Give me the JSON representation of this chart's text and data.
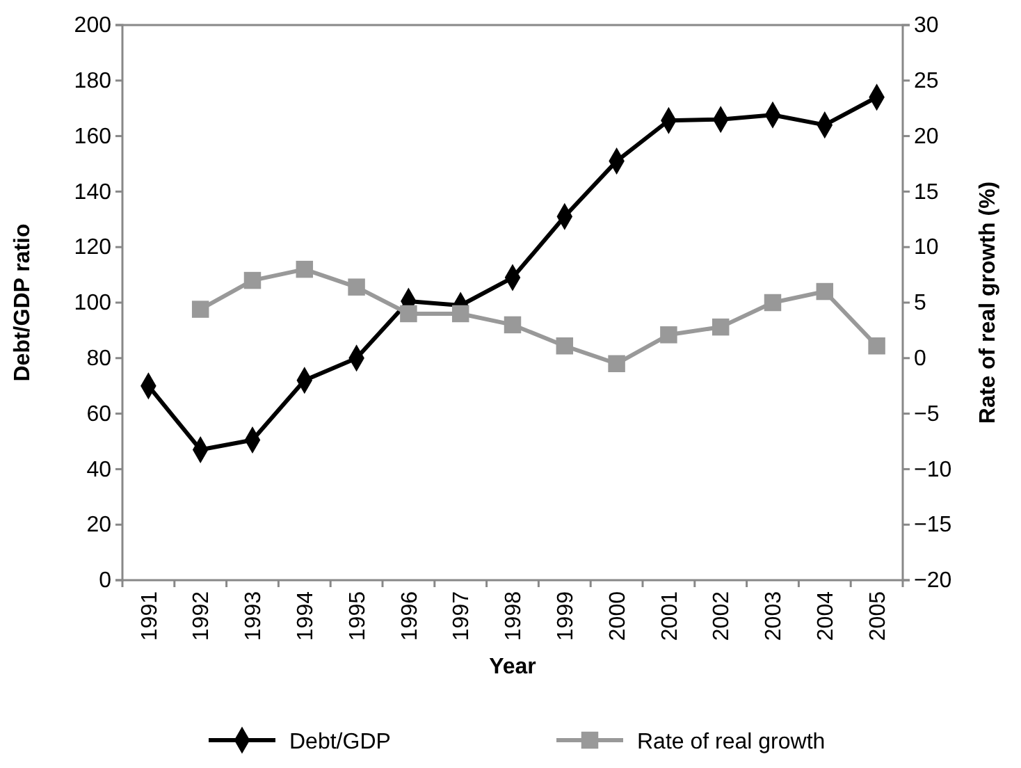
{
  "chart_data": {
    "type": "line",
    "xlabel": "Year",
    "ylabel": "Debt/GDP ratio",
    "y2label": "Rate of real growth (%)",
    "categories": [
      "1991",
      "1992",
      "1993",
      "1994",
      "1995",
      "1996",
      "1997",
      "1998",
      "1999",
      "2000",
      "2001",
      "2002",
      "2003",
      "2004",
      "2005"
    ],
    "series": [
      {
        "name": "Debt/GDP",
        "color": "#000000",
        "marker": "diamond",
        "values": [
          70,
          47,
          50.5,
          72,
          80,
          100.5,
          99,
          109,
          131,
          151,
          165.6,
          166,
          167.6,
          164,
          174
        ]
      },
      {
        "name": "Rate of real growth",
        "color": "#999999",
        "marker": "square",
        "axis": "y2",
        "values": [
          null,
          4.4,
          7,
          8,
          6.4,
          4,
          4,
          3,
          1.1,
          -0.5,
          2.1,
          2.8,
          5,
          6,
          1.1
        ]
      }
    ],
    "ylim": [
      0,
      200
    ],
    "yticks": [
      0,
      20,
      40,
      60,
      80,
      100,
      120,
      140,
      160,
      180,
      200
    ],
    "y2lim": [
      -20,
      30
    ],
    "y2ticks": [
      {
        "value": -20,
        "label": "−20"
      },
      {
        "value": -15,
        "label": "−15"
      },
      {
        "value": -10,
        "label": "−10"
      },
      {
        "value": -5,
        "label": "−5"
      },
      0,
      5,
      10,
      15,
      20,
      25,
      30
    ],
    "grid": false,
    "legend": "bottom",
    "line_style": "solid"
  }
}
